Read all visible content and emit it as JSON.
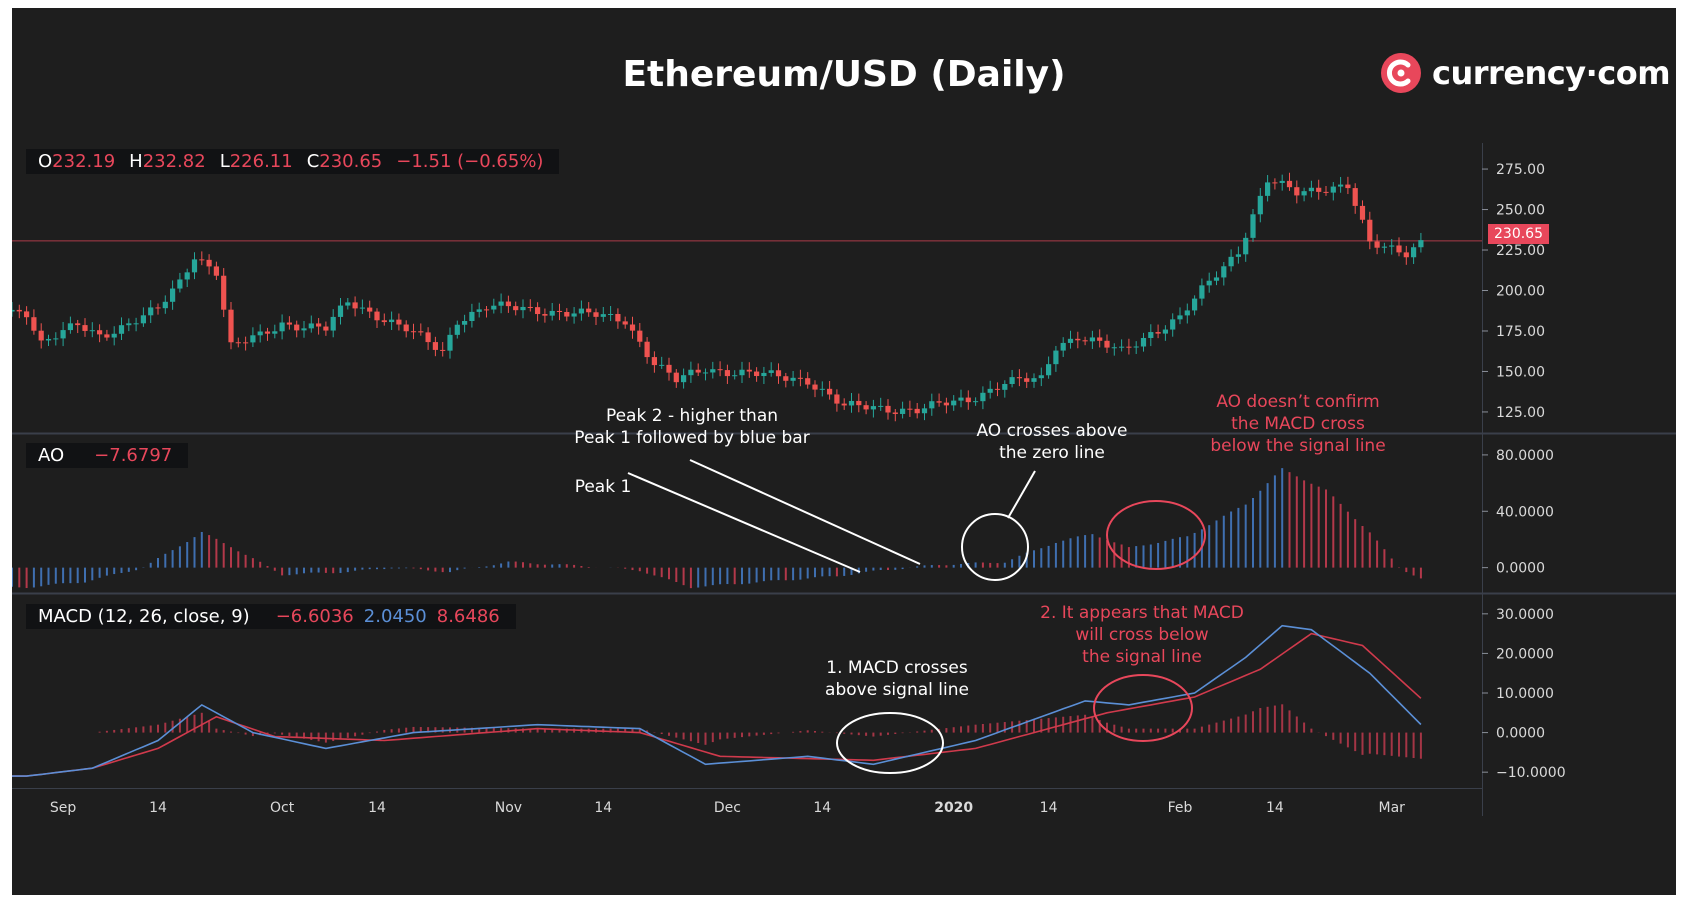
{
  "title": "Ethereum/USD (Daily)",
  "brand": {
    "name": "currency·com",
    "icon": "currency-com-logo-icon",
    "color": "#e8475b"
  },
  "colors": {
    "background": "#1e1e1e",
    "up": "#26a69a",
    "down": "#ef5350",
    "ao_up": "#3f6fb0",
    "ao_down": "#b3384a",
    "macd": "#5b8fd6",
    "signal": "#d03a4c",
    "annotation_red": "#e8475b"
  },
  "ohlc_header": {
    "o_label": "O",
    "o": "232.19",
    "h_label": "H",
    "h": "232.82",
    "l_label": "L",
    "l": "226.11",
    "c_label": "C",
    "c": "230.65",
    "change": "−1.51 (−0.65%)"
  },
  "ao_header": {
    "label": "AO",
    "value": "−7.6797"
  },
  "macd_header": {
    "label": "MACD (12, 26, close, 9)",
    "hist": "−6.6036",
    "macd": "2.0450",
    "signal": "8.6486"
  },
  "current_price_tag": "230.65",
  "chart_data": [
    {
      "type": "candlestick",
      "title": "Ethereum/USD (Daily)",
      "y_ticks": [
        "275.00",
        "250.00",
        "225.00",
        "200.00",
        "175.00",
        "150.00",
        "125.00"
      ],
      "ylim": [
        112,
        288
      ],
      "x_ticks": [
        "Sep",
        "14",
        "Oct",
        "14",
        "Nov",
        "14",
        "Dec",
        "14",
        "2020",
        "14",
        "Feb",
        "14",
        "Mar"
      ],
      "close_series": [
        {
          "date": "2019-08-27",
          "close": 187
        },
        {
          "date": "2019-08-29",
          "close": 168
        },
        {
          "date": "2019-09-03",
          "close": 178
        },
        {
          "date": "2019-09-06",
          "close": 172
        },
        {
          "date": "2019-09-10",
          "close": 180
        },
        {
          "date": "2019-09-14",
          "close": 188
        },
        {
          "date": "2019-09-17",
          "close": 205
        },
        {
          "date": "2019-09-19",
          "close": 222
        },
        {
          "date": "2019-09-22",
          "close": 212
        },
        {
          "date": "2019-09-24",
          "close": 165
        },
        {
          "date": "2019-09-28",
          "close": 172
        },
        {
          "date": "2019-10-01",
          "close": 180
        },
        {
          "date": "2019-10-07",
          "close": 176
        },
        {
          "date": "2019-10-10",
          "close": 193
        },
        {
          "date": "2019-10-14",
          "close": 185
        },
        {
          "date": "2019-10-18",
          "close": 176
        },
        {
          "date": "2019-10-23",
          "close": 162
        },
        {
          "date": "2019-10-25",
          "close": 182
        },
        {
          "date": "2019-10-29",
          "close": 190
        },
        {
          "date": "2019-11-05",
          "close": 188
        },
        {
          "date": "2019-11-12",
          "close": 185
        },
        {
          "date": "2019-11-17",
          "close": 182
        },
        {
          "date": "2019-11-21",
          "close": 155
        },
        {
          "date": "2019-11-24",
          "close": 144
        },
        {
          "date": "2019-11-28",
          "close": 152
        },
        {
          "date": "2019-12-05",
          "close": 148
        },
        {
          "date": "2019-12-12",
          "close": 145
        },
        {
          "date": "2019-12-17",
          "close": 128
        },
        {
          "date": "2019-12-21",
          "close": 128
        },
        {
          "date": "2019-12-27",
          "close": 126
        },
        {
          "date": "2020-01-03",
          "close": 133
        },
        {
          "date": "2020-01-08",
          "close": 143
        },
        {
          "date": "2020-01-13",
          "close": 145
        },
        {
          "date": "2020-01-15",
          "close": 166
        },
        {
          "date": "2020-01-18",
          "close": 172
        },
        {
          "date": "2020-01-24",
          "close": 162
        },
        {
          "date": "2020-01-28",
          "close": 174
        },
        {
          "date": "2020-02-01",
          "close": 183
        },
        {
          "date": "2020-02-05",
          "close": 205
        },
        {
          "date": "2020-02-09",
          "close": 225
        },
        {
          "date": "2020-02-13",
          "close": 268
        },
        {
          "date": "2020-02-17",
          "close": 260
        },
        {
          "date": "2020-02-21",
          "close": 264
        },
        {
          "date": "2020-02-24",
          "close": 265
        },
        {
          "date": "2020-02-27",
          "close": 228
        },
        {
          "date": "2020-03-03",
          "close": 224
        },
        {
          "date": "2020-03-05",
          "close": 230.65
        }
      ]
    },
    {
      "type": "bar",
      "name": "AO",
      "y_ticks": [
        "80.0000",
        "40.0000",
        "0.0000"
      ],
      "ylim": [
        -18,
        92
      ],
      "values_by_date": [
        {
          "date": "2019-08-27",
          "value": -14
        },
        {
          "date": "2019-09-04",
          "value": -10
        },
        {
          "date": "2019-09-12",
          "value": 0
        },
        {
          "date": "2019-09-20",
          "value": 25
        },
        {
          "date": "2019-09-24",
          "value": 15
        },
        {
          "date": "2019-10-01",
          "value": -5
        },
        {
          "date": "2019-10-10",
          "value": -3
        },
        {
          "date": "2019-10-16",
          "value": 0
        },
        {
          "date": "2019-10-24",
          "value": -3
        },
        {
          "date": "2019-11-01",
          "value": 4
        },
        {
          "date": "2019-11-12",
          "value": 1
        },
        {
          "date": "2019-11-19",
          "value": -2
        },
        {
          "date": "2019-11-26",
          "value": -14
        },
        {
          "date": "2019-12-06",
          "value": -10
        },
        {
          "date": "2019-12-16",
          "value": -6
        },
        {
          "date": "2019-12-22",
          "value": -2
        },
        {
          "date": "2019-12-30",
          "value": 2
        },
        {
          "date": "2020-01-08",
          "value": 4
        },
        {
          "date": "2020-01-15",
          "value": 18
        },
        {
          "date": "2020-01-20",
          "value": 24
        },
        {
          "date": "2020-01-25",
          "value": 14
        },
        {
          "date": "2020-02-02",
          "value": 22
        },
        {
          "date": "2020-02-10",
          "value": 45
        },
        {
          "date": "2020-02-15",
          "value": 70
        },
        {
          "date": "2020-02-21",
          "value": 55
        },
        {
          "date": "2020-02-27",
          "value": 25
        },
        {
          "date": "2020-03-02",
          "value": 0
        },
        {
          "date": "2020-03-05",
          "value": -7.6797
        }
      ]
    },
    {
      "type": "line",
      "name": "MACD (12, 26, close, 9)",
      "y_ticks": [
        "30.0000",
        "20.0000",
        "10.0000",
        "0.0000",
        "−10.0000"
      ],
      "ylim": [
        -14,
        34
      ],
      "series": [
        {
          "name": "MACD",
          "points": [
            {
              "date": "2019-08-27",
              "value": -11
            },
            {
              "date": "2019-09-05",
              "value": -9
            },
            {
              "date": "2019-09-14",
              "value": -2
            },
            {
              "date": "2019-09-20",
              "value": 7
            },
            {
              "date": "2019-09-27",
              "value": 0
            },
            {
              "date": "2019-10-07",
              "value": -4
            },
            {
              "date": "2019-10-19",
              "value": 0
            },
            {
              "date": "2019-11-05",
              "value": 2
            },
            {
              "date": "2019-11-19",
              "value": 1
            },
            {
              "date": "2019-11-28",
              "value": -8
            },
            {
              "date": "2019-12-12",
              "value": -6
            },
            {
              "date": "2019-12-21",
              "value": -8
            },
            {
              "date": "2020-01-04",
              "value": -2
            },
            {
              "date": "2020-01-19",
              "value": 8
            },
            {
              "date": "2020-01-25",
              "value": 7
            },
            {
              "date": "2020-02-03",
              "value": 10
            },
            {
              "date": "2020-02-10",
              "value": 19
            },
            {
              "date": "2020-02-15",
              "value": 27
            },
            {
              "date": "2020-02-19",
              "value": 26
            },
            {
              "date": "2020-02-27",
              "value": 15
            },
            {
              "date": "2020-03-05",
              "value": 2.045
            }
          ]
        },
        {
          "name": "Signal",
          "points": [
            {
              "date": "2019-08-27",
              "value": -11
            },
            {
              "date": "2019-09-05",
              "value": -9
            },
            {
              "date": "2019-09-14",
              "value": -4
            },
            {
              "date": "2019-09-22",
              "value": 4
            },
            {
              "date": "2019-09-30",
              "value": -1
            },
            {
              "date": "2019-10-15",
              "value": -2
            },
            {
              "date": "2019-11-05",
              "value": 1
            },
            {
              "date": "2019-11-19",
              "value": 0
            },
            {
              "date": "2019-11-30",
              "value": -6
            },
            {
              "date": "2019-12-21",
              "value": -7
            },
            {
              "date": "2020-01-04",
              "value": -4
            },
            {
              "date": "2020-01-22",
              "value": 5
            },
            {
              "date": "2020-02-03",
              "value": 9
            },
            {
              "date": "2020-02-12",
              "value": 16
            },
            {
              "date": "2020-02-19",
              "value": 25
            },
            {
              "date": "2020-02-26",
              "value": 22
            },
            {
              "date": "2020-03-05",
              "value": 8.6486
            }
          ]
        }
      ],
      "histogram_last": -6.6036
    }
  ],
  "annotations": {
    "peak2": "Peak 2 - higher than\nPeak 1 followed by blue bar",
    "peak1": "Peak 1",
    "ao_cross": "AO crosses above\nthe zero line",
    "ao_confirm": "AO doesn’t confirm\nthe MACD cross\nbelow the signal line",
    "macd_cross1": "1. MACD crosses\nabove signal line",
    "macd_cross2": "2. It appears that MACD\nwill cross below\nthe signal line"
  }
}
